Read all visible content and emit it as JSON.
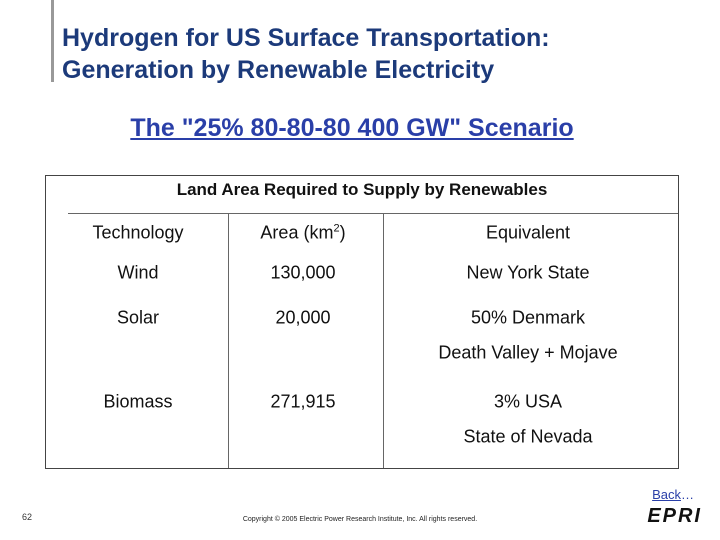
{
  "header": {
    "title_lines": [
      "Hydrogen for US Surface Transportation:",
      "Generation by Renewable Electricity"
    ],
    "subtitle": "The \"25% 80-80-80 400 GW\" Scenario"
  },
  "table": {
    "title": "Land Area Required to Supply by Renewables",
    "headers": [
      "Technology",
      {
        "text": "Area (km",
        "sup": "2",
        "tail": ")"
      },
      "Equivalent"
    ],
    "rows": [
      {
        "cells": [
          "Wind",
          "130,000",
          "New York State"
        ],
        "extra": null
      },
      {
        "cells": [
          "Solar",
          "20,000",
          "50% Denmark"
        ],
        "extra": "Death Valley + Mojave"
      },
      {
        "cells": [
          "Biomass",
          "271,915",
          "3% USA"
        ],
        "extra": "State of Nevada"
      }
    ]
  },
  "footer": {
    "back": "Back",
    "ellipsis": "…",
    "page": "62",
    "copyright": "Copyright © 2005 Electric Power Research Institute, Inc. All rights reserved.",
    "logo": "EPRI"
  }
}
